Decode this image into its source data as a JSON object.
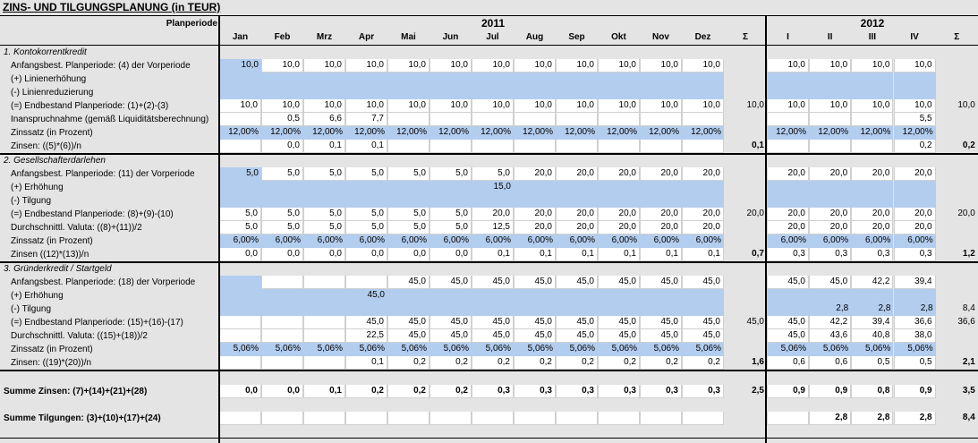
{
  "header": {
    "title": "ZINS- UND TILGUNGSPLANUNG (in TEUR)",
    "period_label": "Planperiode",
    "years": [
      "2011",
      "2012"
    ],
    "columns": [
      "Jan",
      "Feb",
      "Mrz",
      "Apr",
      "Mai",
      "Jun",
      "Jul",
      "Aug",
      "Sep",
      "Okt",
      "Nov",
      "Dez",
      "Σ",
      "I",
      "II",
      "III",
      "IV",
      "Σ"
    ]
  },
  "sections": [
    {
      "title": "1. Kontokorrentkredit",
      "rows": [
        {
          "label": "Anfangsbest. Planperiode: (4) der Vorperiode",
          "cells": [
            "10,0",
            "10,0",
            "10,0",
            "10,0",
            "10,0",
            "10,0",
            "10,0",
            "10,0",
            "10,0",
            "10,0",
            "10,0",
            "10,0",
            null,
            "10,0",
            "10,0",
            "10,0",
            "10,0",
            null
          ]
        },
        {
          "label": "(+) Linienerhöhung",
          "cells": [
            null,
            null,
            null,
            null,
            null,
            null,
            null,
            null,
            null,
            null,
            null,
            null,
            null,
            null,
            null,
            null,
            null,
            null
          ]
        },
        {
          "label": "(-) Linienreduzierung",
          "cells": [
            null,
            null,
            null,
            null,
            null,
            null,
            null,
            null,
            null,
            null,
            null,
            null,
            null,
            null,
            null,
            null,
            null,
            null
          ]
        },
        {
          "label": "(=) Endbestand Planperiode: (1)+(2)-(3)",
          "cells": [
            "10,0",
            "10,0",
            "10,0",
            "10,0",
            "10,0",
            "10,0",
            "10,0",
            "10,0",
            "10,0",
            "10,0",
            "10,0",
            "10,0",
            "10,0",
            "10,0",
            "10,0",
            "10,0",
            "10,0",
            "10,0"
          ]
        },
        {
          "label": "Inanspruchnahme (gemäß Liquiditätsberechnung)",
          "cells": [
            null,
            "0,5",
            "6,6",
            "7,7",
            null,
            null,
            null,
            null,
            null,
            null,
            null,
            null,
            null,
            null,
            null,
            null,
            "5,5",
            null
          ]
        },
        {
          "label": "Zinssatz (in Prozent)",
          "cells": [
            "12,00%",
            "12,00%",
            "12,00%",
            "12,00%",
            "12,00%",
            "12,00%",
            "12,00%",
            "12,00%",
            "12,00%",
            "12,00%",
            "12,00%",
            "12,00%",
            null,
            "12,00%",
            "12,00%",
            "12,00%",
            "12,00%",
            null
          ]
        },
        {
          "label": "Zinsen: ((5)*(6))/n",
          "cells": [
            null,
            "0,0",
            "0,1",
            "0,1",
            null,
            null,
            null,
            null,
            null,
            null,
            null,
            null,
            "0,1",
            null,
            null,
            null,
            "0,2",
            "0,2"
          ]
        }
      ]
    },
    {
      "title": "2. Gesellschafterdarlehen",
      "rows": [
        {
          "label": "Anfangsbest. Planperiode: (11) der Vorperiode",
          "cells": [
            "5,0",
            "5,0",
            "5,0",
            "5,0",
            "5,0",
            "5,0",
            "5,0",
            "20,0",
            "20,0",
            "20,0",
            "20,0",
            "20,0",
            null,
            "20,0",
            "20,0",
            "20,0",
            "20,0",
            null
          ]
        },
        {
          "label": "(+) Erhöhung",
          "cells": [
            null,
            null,
            null,
            null,
            null,
            null,
            "15,0",
            null,
            null,
            null,
            null,
            null,
            null,
            null,
            null,
            null,
            null,
            null
          ]
        },
        {
          "label": "(-) Tilgung",
          "cells": [
            null,
            null,
            null,
            null,
            null,
            null,
            null,
            null,
            null,
            null,
            null,
            null,
            null,
            null,
            null,
            null,
            null,
            null
          ]
        },
        {
          "label": "(=) Endbestand Planperiode: (8)+(9)-(10)",
          "cells": [
            "5,0",
            "5,0",
            "5,0",
            "5,0",
            "5,0",
            "5,0",
            "20,0",
            "20,0",
            "20,0",
            "20,0",
            "20,0",
            "20,0",
            "20,0",
            "20,0",
            "20,0",
            "20,0",
            "20,0",
            "20,0"
          ]
        },
        {
          "label": "Durchschnittl. Valuta: ((8)+(11))/2",
          "cells": [
            "5,0",
            "5,0",
            "5,0",
            "5,0",
            "5,0",
            "5,0",
            "12,5",
            "20,0",
            "20,0",
            "20,0",
            "20,0",
            "20,0",
            null,
            "20,0",
            "20,0",
            "20,0",
            "20,0",
            null
          ]
        },
        {
          "label": "Zinssatz (in Prozent)",
          "cells": [
            "6,00%",
            "6,00%",
            "6,00%",
            "6,00%",
            "6,00%",
            "6,00%",
            "6,00%",
            "6,00%",
            "6,00%",
            "6,00%",
            "6,00%",
            "6,00%",
            null,
            "6,00%",
            "6,00%",
            "6,00%",
            "6,00%",
            null
          ]
        },
        {
          "label": "Zinsen ((12)*(13))/n",
          "cells": [
            "0,0",
            "0,0",
            "0,0",
            "0,0",
            "0,0",
            "0,0",
            "0,1",
            "0,1",
            "0,1",
            "0,1",
            "0,1",
            "0,1",
            "0,7",
            "0,3",
            "0,3",
            "0,3",
            "0,3",
            "1,2"
          ]
        }
      ]
    },
    {
      "title": "3. Gründerkredit / Startgeld",
      "rows": [
        {
          "label": "Anfangsbest. Planperiode: (18) der Vorperiode",
          "cells": [
            null,
            null,
            null,
            null,
            "45,0",
            "45,0",
            "45,0",
            "45,0",
            "45,0",
            "45,0",
            "45,0",
            "45,0",
            null,
            "45,0",
            "45,0",
            "42,2",
            "39,4",
            null
          ]
        },
        {
          "label": "(+) Erhöhung",
          "cells": [
            null,
            null,
            null,
            "45,0",
            null,
            null,
            null,
            null,
            null,
            null,
            null,
            null,
            null,
            null,
            null,
            null,
            null,
            null
          ]
        },
        {
          "label": "(-) Tilgung",
          "cells": [
            null,
            null,
            null,
            null,
            null,
            null,
            null,
            null,
            null,
            null,
            null,
            null,
            null,
            null,
            "2,8",
            "2,8",
            "2,8",
            "8,4"
          ]
        },
        {
          "label": "(=) Endbestand Planperiode: (15)+(16)-(17)",
          "cells": [
            null,
            null,
            null,
            "45,0",
            "45,0",
            "45,0",
            "45,0",
            "45,0",
            "45,0",
            "45,0",
            "45,0",
            "45,0",
            "45,0",
            "45,0",
            "42,2",
            "39,4",
            "36,6",
            "36,6"
          ]
        },
        {
          "label": "Durchschnittl. Valuta: ((15)+(18))/2",
          "cells": [
            null,
            null,
            null,
            "22,5",
            "45,0",
            "45,0",
            "45,0",
            "45,0",
            "45,0",
            "45,0",
            "45,0",
            "45,0",
            null,
            "45,0",
            "43,6",
            "40,8",
            "38,0",
            null
          ]
        },
        {
          "label": "Zinssatz (in Prozent)",
          "cells": [
            "5,06%",
            "5,06%",
            "5,06%",
            "5,06%",
            "5,06%",
            "5,06%",
            "5,06%",
            "5,06%",
            "5,06%",
            "5,06%",
            "5,06%",
            "5,06%",
            null,
            "5,06%",
            "5,06%",
            "5,06%",
            "5,06%",
            null
          ]
        },
        {
          "label": "Zinsen: ((19)*(20))/n",
          "cells": [
            null,
            null,
            null,
            "0,1",
            "0,2",
            "0,2",
            "0,2",
            "0,2",
            "0,2",
            "0,2",
            "0,2",
            "0,2",
            "1,6",
            "0,6",
            "0,6",
            "0,5",
            "0,5",
            "2,1"
          ]
        }
      ]
    }
  ],
  "summary": [
    {
      "label": "Summe Zinsen: (7)+(14)+(21)+(28)",
      "cells": [
        "0,0",
        "0,0",
        "0,1",
        "0,2",
        "0,2",
        "0,2",
        "0,3",
        "0,3",
        "0,3",
        "0,3",
        "0,3",
        "0,3",
        "2,5",
        "0,9",
        "0,9",
        "0,8",
        "0,9",
        "3,5"
      ]
    },
    {
      "label": "Summe Tilgungen: (3)+(10)+(17)+(24)",
      "cells": [
        null,
        null,
        null,
        null,
        null,
        null,
        null,
        null,
        null,
        null,
        null,
        null,
        null,
        null,
        "2,8",
        "2,8",
        "2,8",
        "8,4"
      ]
    }
  ]
}
